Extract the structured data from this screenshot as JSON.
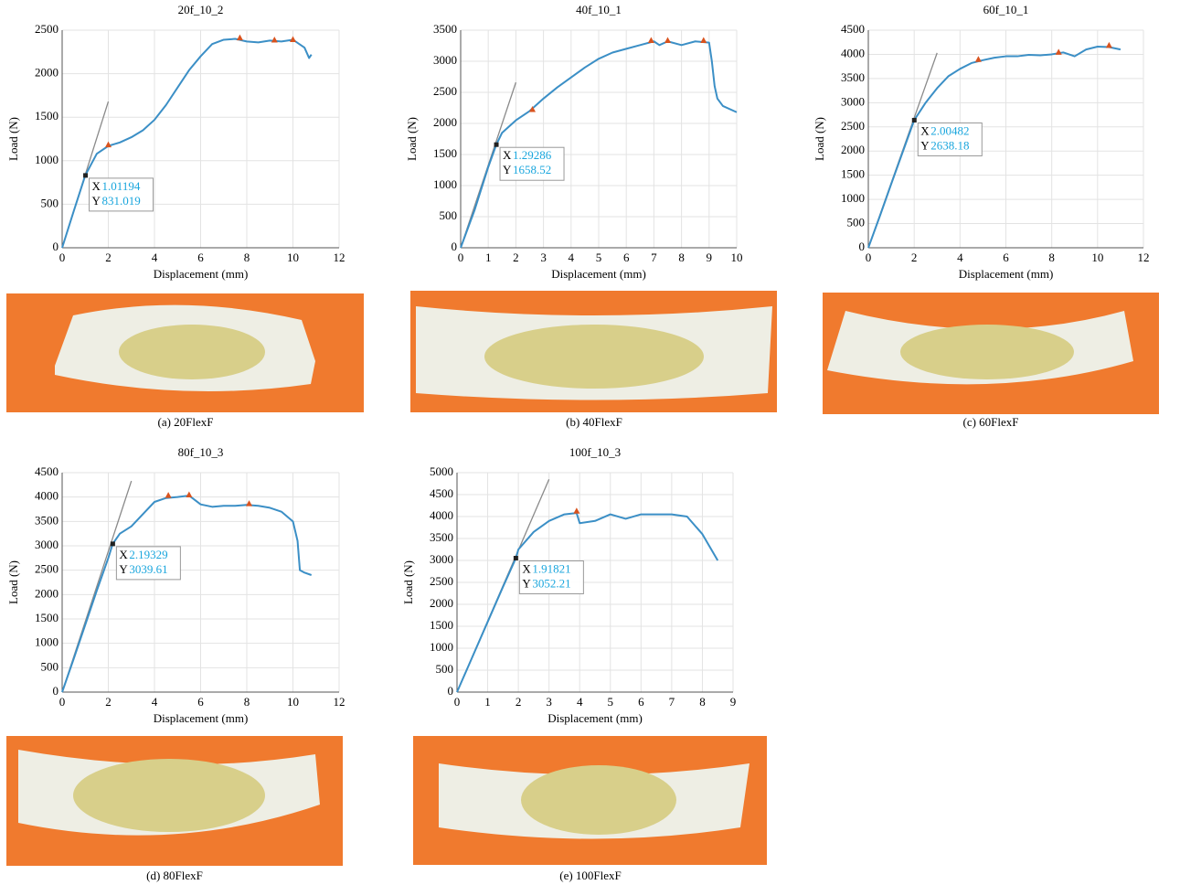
{
  "chart_data": [
    {
      "type": "line",
      "title": "20f_10_2",
      "xlabel": "Displacement (mm)",
      "ylabel": "Load (N)",
      "x": [
        0,
        0.5,
        1,
        1.5,
        2,
        2.5,
        3,
        3.5,
        4,
        4.5,
        5,
        5.5,
        6,
        6.5,
        7,
        7.5,
        8,
        8.5,
        9,
        9.5,
        10,
        10.5,
        10.7,
        10.8
      ],
      "series": [
        {
          "color": "#3b8fc6",
          "values": [
            0,
            420,
            831,
            1080,
            1170,
            1210,
            1270,
            1350,
            1470,
            1640,
            1840,
            2040,
            2200,
            2340,
            2390,
            2400,
            2370,
            2360,
            2380,
            2370,
            2390,
            2300,
            2180,
            2220
          ]
        }
      ],
      "peaks": {
        "color": "#d9531e",
        "x": [
          2,
          7.7,
          9.2,
          10
        ],
        "y": [
          1180,
          2410,
          2385,
          2390
        ]
      },
      "tangent": {
        "color": "#8a8a8a",
        "x": [
          0,
          2
        ],
        "y": [
          0,
          1680
        ]
      },
      "datatip": {
        "labels": [
          "X",
          "Y"
        ],
        "values": [
          1.01194,
          831.019
        ]
      },
      "xlim": [
        0,
        12
      ],
      "ylim": [
        0,
        2500
      ],
      "xticks": [
        0,
        2,
        4,
        6,
        8,
        10,
        12
      ],
      "yticks": [
        0,
        500,
        1000,
        1500,
        2000,
        2500
      ],
      "grid": true
    },
    {
      "type": "line",
      "title": "40f_10_1",
      "xlabel": "Displacement (mm)",
      "ylabel": "Load (N)",
      "x": [
        0,
        0.5,
        1,
        1.29,
        1.5,
        2,
        2.5,
        3,
        3.5,
        4,
        4.5,
        5,
        5.5,
        6,
        6.5,
        7,
        7.2,
        7.5,
        8,
        8.5,
        9,
        9.1,
        9.2,
        9.3,
        9.5,
        10
      ],
      "series": [
        {
          "color": "#3b8fc6",
          "values": [
            0,
            600,
            1300,
            1658,
            1850,
            2050,
            2200,
            2400,
            2580,
            2740,
            2900,
            3040,
            3140,
            3200,
            3260,
            3320,
            3260,
            3320,
            3260,
            3320,
            3300,
            3000,
            2600,
            2400,
            2280,
            2180
          ]
        }
      ],
      "peaks": {
        "color": "#d9531e",
        "x": [
          2.6,
          6.9,
          7.5,
          8.8
        ],
        "y": [
          2220,
          3330,
          3330,
          3330
        ]
      },
      "tangent": {
        "color": "#8a8a8a",
        "x": [
          0,
          2
        ],
        "y": [
          0,
          2660
        ]
      },
      "datatip": {
        "labels": [
          "X",
          "Y"
        ],
        "values": [
          1.29286,
          1658.52
        ]
      },
      "xlim": [
        0,
        10
      ],
      "ylim": [
        0,
        3500
      ],
      "xticks": [
        0,
        1,
        2,
        3,
        4,
        5,
        6,
        7,
        8,
        9,
        10
      ],
      "yticks": [
        0,
        500,
        1000,
        1500,
        2000,
        2500,
        3000,
        3500
      ],
      "grid": true
    },
    {
      "type": "line",
      "title": "60f_10_1",
      "xlabel": "Displacement (mm)",
      "ylabel": "Load (N)",
      "x": [
        0,
        0.5,
        1,
        1.5,
        2,
        2.5,
        3,
        3.5,
        4,
        4.5,
        5,
        5.5,
        6,
        6.5,
        7,
        7.5,
        8,
        8.5,
        9,
        9.5,
        10,
        10.5,
        11
      ],
      "series": [
        {
          "color": "#3b8fc6",
          "values": [
            0,
            650,
            1320,
            1980,
            2638,
            3000,
            3300,
            3550,
            3700,
            3820,
            3880,
            3930,
            3960,
            3960,
            3990,
            3980,
            4000,
            4040,
            3960,
            4100,
            4160,
            4150,
            4100
          ]
        }
      ],
      "peaks": {
        "color": "#d9531e",
        "x": [
          4.8,
          8.3,
          10.5
        ],
        "y": [
          3890,
          4040,
          4180
        ]
      },
      "tangent": {
        "color": "#8a8a8a",
        "x": [
          0,
          3
        ],
        "y": [
          0,
          4030
        ]
      },
      "datatip": {
        "labels": [
          "X",
          "Y"
        ],
        "values": [
          2.00482,
          2638.18
        ]
      },
      "xlim": [
        0,
        12
      ],
      "ylim": [
        0,
        4500
      ],
      "xticks": [
        0,
        2,
        4,
        6,
        8,
        10,
        12
      ],
      "yticks": [
        0,
        500,
        1000,
        1500,
        2000,
        2500,
        3000,
        3500,
        4000,
        4500
      ],
      "grid": true
    },
    {
      "type": "line",
      "title": "80f_10_3",
      "xlabel": "Displacement (mm)",
      "ylabel": "Load (N)",
      "x": [
        0,
        0.5,
        1,
        1.5,
        2,
        2.19,
        2.5,
        3,
        3.5,
        4,
        4.5,
        5,
        5.5,
        6,
        6.5,
        7,
        7.5,
        8,
        8.5,
        9,
        9.5,
        10,
        10.2,
        10.3,
        10.5,
        10.8
      ],
      "series": [
        {
          "color": "#3b8fc6",
          "values": [
            0,
            680,
            1380,
            2080,
            2750,
            3040,
            3250,
            3400,
            3650,
            3900,
            3980,
            4000,
            4030,
            3850,
            3800,
            3820,
            3820,
            3840,
            3820,
            3780,
            3700,
            3500,
            3100,
            2500,
            2450,
            2400
          ]
        }
      ],
      "peaks": {
        "color": "#d9531e",
        "x": [
          4.6,
          5.5,
          8.1
        ],
        "y": [
          4030,
          4040,
          3860
        ]
      },
      "tangent": {
        "color": "#8a8a8a",
        "x": [
          0,
          3
        ],
        "y": [
          0,
          4330
        ]
      },
      "datatip": {
        "labels": [
          "X",
          "Y"
        ],
        "values": [
          2.19329,
          3039.61
        ]
      },
      "xlim": [
        0,
        12
      ],
      "ylim": [
        0,
        4500
      ],
      "xticks": [
        0,
        2,
        4,
        6,
        8,
        10,
        12
      ],
      "yticks": [
        0,
        500,
        1000,
        1500,
        2000,
        2500,
        3000,
        3500,
        4000,
        4500
      ],
      "grid": true
    },
    {
      "type": "line",
      "title": "100f_10_3",
      "xlabel": "Displacement (mm)",
      "ylabel": "Load (N)",
      "x": [
        0,
        0.5,
        1,
        1.5,
        1.92,
        2,
        2.5,
        3,
        3.5,
        3.9,
        4,
        4.5,
        5,
        5.5,
        6,
        6.5,
        7,
        7.5,
        8,
        8.5
      ],
      "series": [
        {
          "color": "#3b8fc6",
          "values": [
            0,
            800,
            1600,
            2400,
            3052,
            3250,
            3650,
            3900,
            4050,
            4080,
            3850,
            3900,
            4050,
            3950,
            4050,
            4050,
            4050,
            4000,
            3600,
            3000
          ]
        }
      ],
      "peaks": {
        "color": "#d9531e",
        "x": [
          3.9
        ],
        "y": [
          4120
        ]
      },
      "tangent": {
        "color": "#8a8a8a",
        "x": [
          0,
          3
        ],
        "y": [
          0,
          4850
        ]
      },
      "datatip": {
        "labels": [
          "X",
          "Y"
        ],
        "values": [
          1.91821,
          3052.21
        ]
      },
      "xlim": [
        0,
        9
      ],
      "ylim": [
        0,
        5000
      ],
      "xticks": [
        0,
        1,
        2,
        3,
        4,
        5,
        6,
        7,
        8,
        9
      ],
      "yticks": [
        0,
        500,
        1000,
        1500,
        2000,
        2500,
        3000,
        3500,
        4000,
        4500,
        5000
      ],
      "grid": true
    }
  ],
  "captions": [
    "(a) 20FlexF",
    "(b) 40FlexF",
    "(c) 60FlexF",
    "(d) 80FlexF",
    "(e) 100FlexF"
  ]
}
